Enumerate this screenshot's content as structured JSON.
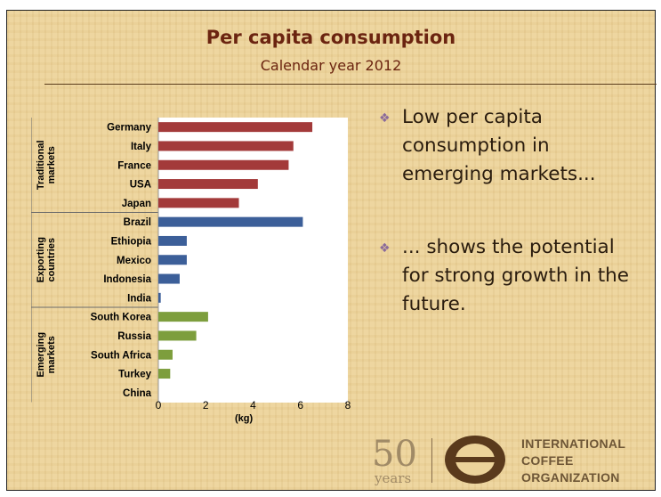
{
  "slide": {
    "title": "Per capita consumption",
    "subtitle": "Calendar year 2012",
    "bullets": [
      "Low per capita consumption in emerging markets...",
      "... shows the potential for strong growth in the future."
    ],
    "logo": {
      "anniversary_number": "50",
      "anniversary_word": "years",
      "org_line1": "INTERNATIONAL",
      "org_line2": "COFFEE",
      "org_line3": "ORGANIZATION"
    }
  },
  "chart_data": {
    "type": "bar",
    "orientation": "horizontal",
    "xlabel": "(kg)",
    "xlim": [
      0,
      8
    ],
    "xticks": [
      0,
      2,
      4,
      6,
      8
    ],
    "grid": false,
    "categories": [
      "Germany",
      "Italy",
      "France",
      "USA",
      "Japan",
      "Brazil",
      "Ethiopia",
      "Mexico",
      "Indonesia",
      "India",
      "South Korea",
      "Russia",
      "South Africa",
      "Turkey",
      "China"
    ],
    "values": [
      6.5,
      5.7,
      5.5,
      4.2,
      3.4,
      6.1,
      1.2,
      1.2,
      0.9,
      0.1,
      2.1,
      1.6,
      0.6,
      0.5,
      0.0
    ],
    "groups": [
      {
        "name": "Traditional markets",
        "start": 0,
        "count": 5,
        "color": "#a33a3a"
      },
      {
        "name": "Exporting countries",
        "start": 5,
        "count": 5,
        "color": "#3c5f99"
      },
      {
        "name": "Emerging markets",
        "start": 10,
        "count": 5,
        "color": "#7d9e3d"
      }
    ]
  }
}
